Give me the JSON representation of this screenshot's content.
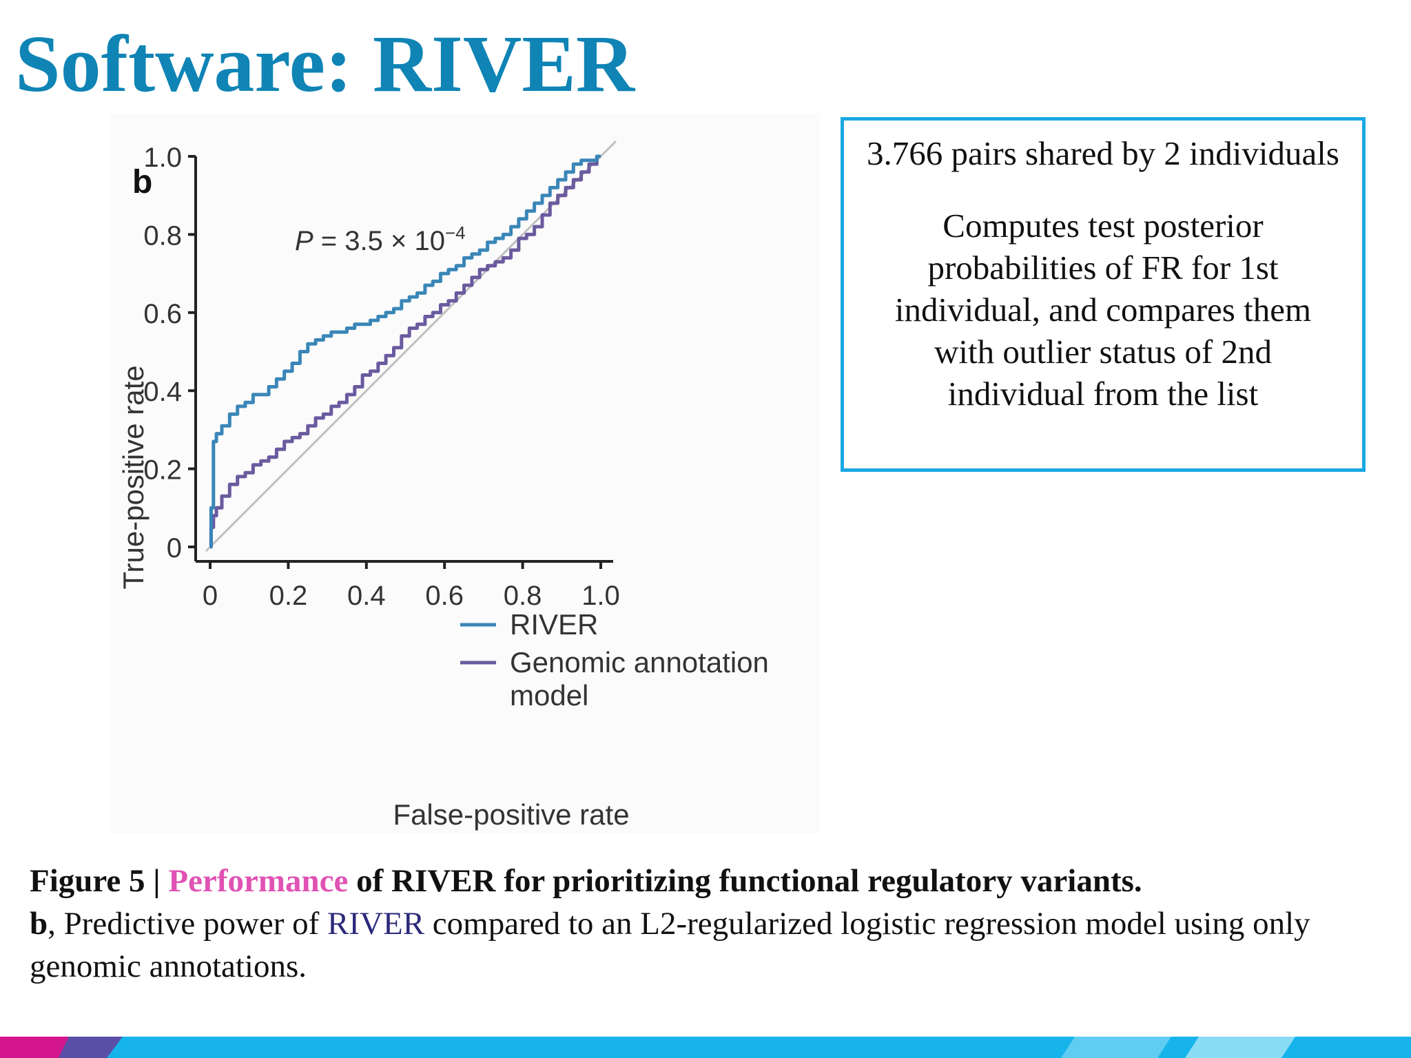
{
  "slide": {
    "title": "Software: RIVER"
  },
  "info_box": {
    "headline": "3.766 pairs shared by 2 individuals",
    "body": "Computes test posterior probabilities of FR for 1st individual, and compares them with outlier status of 2nd individual from the list"
  },
  "caption": {
    "figure_label": "Figure 5 |",
    "highlight_word": "Performance",
    "title_rest": " of RIVER for prioritizing functional regulatory variants.",
    "panel_letter": "b",
    "desc_before": ", Predictive power of ",
    "desc_highlight": "RIVER",
    "desc_after": " compared to an L2-regularized logistic regression model using only genomic annotations."
  },
  "colors": {
    "title": "#0f84b5",
    "river_line": "#3a86b8",
    "genomic_line": "#6a5a9e",
    "diagonal": "#c0c0c0",
    "info_border": "#1aa8e2",
    "caption_highlight_pink": "#e052b4",
    "caption_highlight_navy": "#2b2a7a"
  },
  "chart_data": {
    "type": "line",
    "panel_label": "b",
    "annotation": {
      "p_label": "P",
      "p_text": " = 3.5 × 10",
      "p_exponent": "−4"
    },
    "xlabel": "False-positive rate",
    "ylabel": "True-positive rate",
    "xlim": [
      0,
      1
    ],
    "ylim": [
      0,
      1
    ],
    "x_ticks": [
      0,
      0.2,
      0.4,
      0.6,
      0.8,
      1.0
    ],
    "x_tick_labels": [
      "0",
      "0.2",
      "0.4",
      "0.6",
      "0.8",
      "1.0"
    ],
    "y_ticks": [
      0,
      0.2,
      0.4,
      0.6,
      0.8,
      1.0
    ],
    "y_tick_labels": [
      "0",
      "0.2",
      "0.4",
      "0.6",
      "0.8",
      "1.0"
    ],
    "grid": false,
    "legend_position": "bottom-right",
    "reference_line": "diagonal",
    "series": [
      {
        "name": "RIVER",
        "color": "#3a86b8",
        "x": [
          0,
          0.005,
          0.012,
          0.02,
          0.04,
          0.06,
          0.08,
          0.1,
          0.12,
          0.14,
          0.16,
          0.18,
          0.2,
          0.22,
          0.24,
          0.26,
          0.28,
          0.3,
          0.32,
          0.34,
          0.36,
          0.38,
          0.4,
          0.42,
          0.44,
          0.46,
          0.48,
          0.5,
          0.52,
          0.54,
          0.56,
          0.58,
          0.6,
          0.62,
          0.64,
          0.66,
          0.68,
          0.7,
          0.72,
          0.74,
          0.76,
          0.78,
          0.8,
          0.82,
          0.84,
          0.86,
          0.88,
          0.9,
          0.92,
          0.94,
          0.96,
          0.98,
          1.0
        ],
        "y": [
          0,
          0.1,
          0.27,
          0.29,
          0.31,
          0.34,
          0.36,
          0.37,
          0.39,
          0.39,
          0.41,
          0.43,
          0.45,
          0.47,
          0.5,
          0.52,
          0.53,
          0.54,
          0.55,
          0.55,
          0.56,
          0.57,
          0.57,
          0.58,
          0.59,
          0.6,
          0.61,
          0.63,
          0.64,
          0.65,
          0.67,
          0.68,
          0.7,
          0.71,
          0.72,
          0.74,
          0.75,
          0.76,
          0.78,
          0.79,
          0.8,
          0.82,
          0.84,
          0.86,
          0.88,
          0.9,
          0.92,
          0.94,
          0.96,
          0.98,
          0.99,
          0.99,
          1.0
        ]
      },
      {
        "name": "Genomic annotation model",
        "color": "#6a5a9e",
        "x": [
          0,
          0.005,
          0.012,
          0.02,
          0.04,
          0.06,
          0.08,
          0.1,
          0.12,
          0.14,
          0.16,
          0.18,
          0.2,
          0.22,
          0.24,
          0.26,
          0.28,
          0.3,
          0.32,
          0.34,
          0.36,
          0.38,
          0.4,
          0.42,
          0.44,
          0.46,
          0.48,
          0.5,
          0.52,
          0.54,
          0.56,
          0.58,
          0.6,
          0.62,
          0.64,
          0.66,
          0.68,
          0.7,
          0.72,
          0.74,
          0.76,
          0.78,
          0.8,
          0.82,
          0.84,
          0.86,
          0.88,
          0.9,
          0.92,
          0.94,
          0.96,
          0.98,
          1.0
        ],
        "y": [
          0,
          0.05,
          0.08,
          0.1,
          0.13,
          0.16,
          0.18,
          0.19,
          0.21,
          0.22,
          0.23,
          0.25,
          0.27,
          0.28,
          0.29,
          0.31,
          0.33,
          0.34,
          0.36,
          0.37,
          0.39,
          0.41,
          0.44,
          0.45,
          0.47,
          0.49,
          0.51,
          0.54,
          0.56,
          0.57,
          0.59,
          0.6,
          0.62,
          0.63,
          0.65,
          0.67,
          0.69,
          0.71,
          0.72,
          0.73,
          0.74,
          0.76,
          0.79,
          0.8,
          0.82,
          0.85,
          0.88,
          0.9,
          0.92,
          0.94,
          0.96,
          0.98,
          1.0
        ]
      }
    ]
  }
}
